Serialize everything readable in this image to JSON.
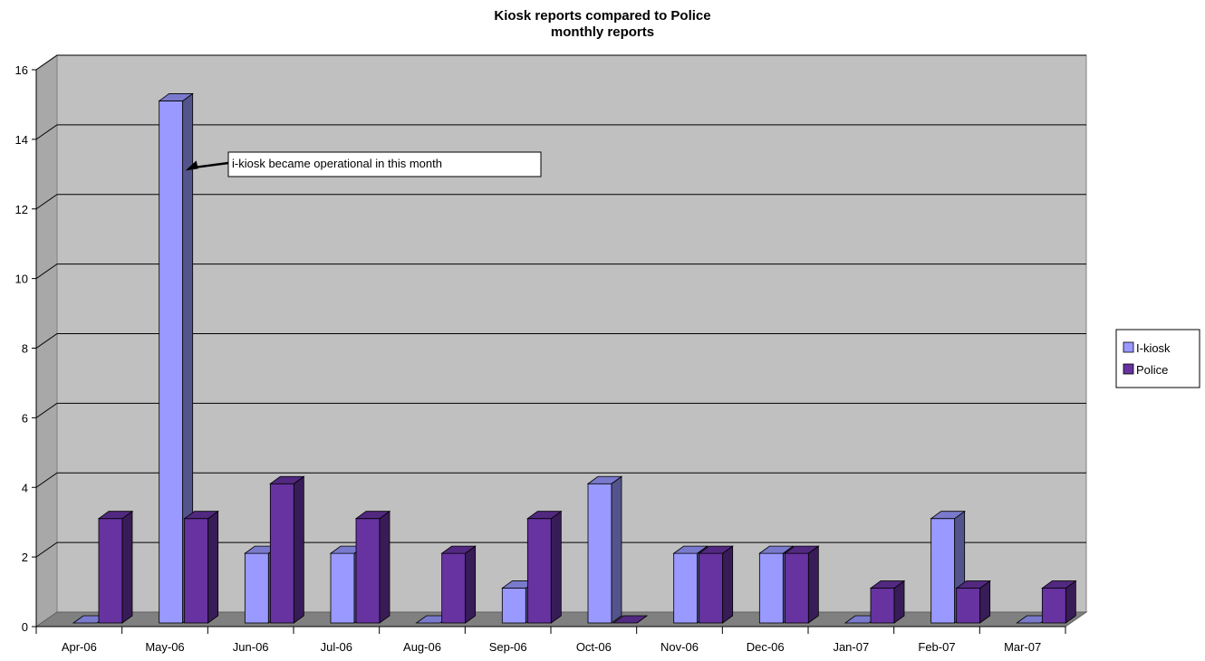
{
  "chart_data": {
    "type": "bar",
    "title_lines": [
      "Kiosk reports compared to Police",
      "monthly reports"
    ],
    "xlabel": "",
    "ylabel": "",
    "categories": [
      "Apr-06",
      "May-06",
      "Jun-06",
      "Jul-06",
      "Aug-06",
      "Sep-06",
      "Oct-06",
      "Nov-06",
      "Dec-06",
      "Jan-07",
      "Feb-07",
      "Mar-07"
    ],
    "series": [
      {
        "name": "I-kiosk",
        "values": [
          0,
          15,
          2,
          2,
          0,
          1,
          4,
          2,
          2,
          0,
          3,
          0
        ],
        "color": "#9999ff"
      },
      {
        "name": "Police",
        "values": [
          3,
          3,
          4,
          3,
          2,
          3,
          0,
          2,
          2,
          1,
          1,
          1
        ],
        "color": "#6633a0"
      }
    ],
    "ylim": [
      0,
      16
    ],
    "yticks": [
      0,
      2,
      4,
      6,
      8,
      10,
      12,
      14,
      16
    ],
    "grid": true,
    "legend_position": "right",
    "three_d": true,
    "annotation": {
      "text": "i-kiosk became operational in this month",
      "category": "May-06",
      "series": "I-kiosk",
      "value": 13
    }
  }
}
